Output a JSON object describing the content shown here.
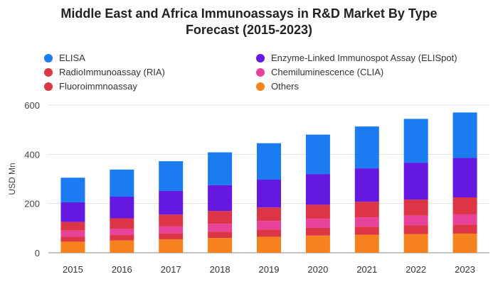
{
  "chart_data": {
    "type": "bar",
    "stacked": true,
    "title": "Middle East and Africa Immunoassays in R&D Market By Type Forecast (2015-2023)",
    "title_lines": [
      "Middle East and Africa Immunoassays in R&D Market By Type",
      "Forecast (2015-2023)"
    ],
    "xlabel": "",
    "ylabel": "USD Mn",
    "ylim": [
      0,
      600
    ],
    "yticks": [
      "0",
      "200",
      "400",
      "600"
    ],
    "grid": true,
    "legend_position": "top",
    "categories": [
      "2015",
      "2016",
      "2017",
      "2018",
      "2019",
      "2020",
      "2021",
      "2022",
      "2023"
    ],
    "series": [
      {
        "name": "Others",
        "color": "#f5821f",
        "values": [
          45,
          50,
          55,
          60,
          65,
          70,
          73,
          76,
          78
        ]
      },
      {
        "name": "Fluoroimmnoassay",
        "color": "#dc3545",
        "values": [
          20,
          22,
          24,
          26,
          29,
          31,
          33,
          35,
          37
        ]
      },
      {
        "name": "Chemiluminescence (CLIA)",
        "color": "#e8439a",
        "values": [
          25,
          26,
          28,
          32,
          35,
          37,
          38,
          40,
          41
        ]
      },
      {
        "name": "RadioImmunoassay (RIA)",
        "color": "#dc3545",
        "values": [
          35,
          42,
          48,
          52,
          55,
          57,
          63,
          65,
          69
        ]
      },
      {
        "name": "Enzyme-Linked Immunospot Assay (ELISpot)",
        "color": "#6418e0",
        "values": [
          80,
          88,
          97,
          105,
          113,
          125,
          136,
          150,
          160
        ]
      },
      {
        "name": "ELISA",
        "color": "#1a7cf0",
        "values": [
          100,
          110,
          120,
          133,
          148,
          160,
          170,
          178,
          185
        ]
      }
    ],
    "legend": [
      {
        "name": "ELISA",
        "color": "#1a7cf0"
      },
      {
        "name": "Enzyme-Linked Immunospot Assay (ELISpot)",
        "color": "#6418e0"
      },
      {
        "name": "RadioImmunoassay (RIA)",
        "color": "#dc3545"
      },
      {
        "name": "Chemiluminescence (CLIA)",
        "color": "#e8439a"
      },
      {
        "name": "Fluoroimmnoassay",
        "color": "#dc3545"
      },
      {
        "name": "Others",
        "color": "#f5821f"
      }
    ]
  }
}
